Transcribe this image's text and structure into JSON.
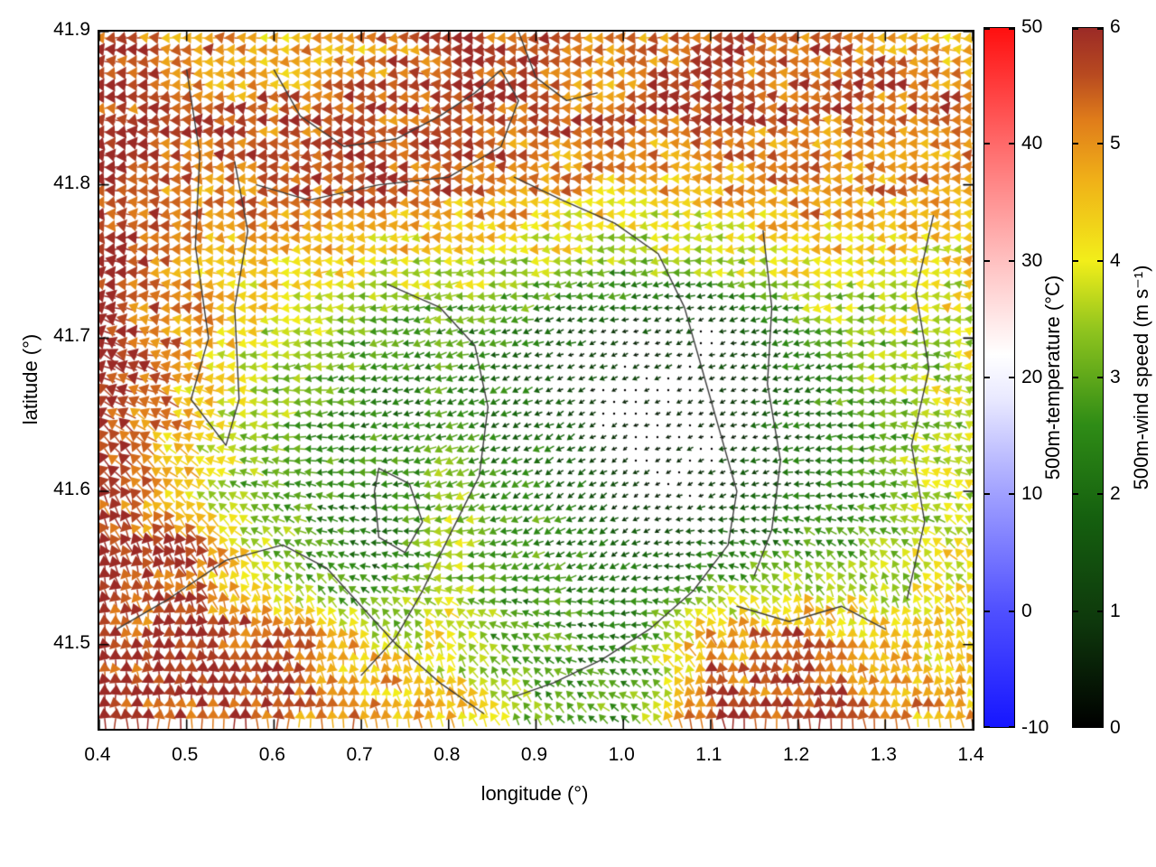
{
  "chart_data": {
    "type": "quiver",
    "title": "",
    "xlabel": "longitude (°)",
    "ylabel": "latitude (°)",
    "xlim": [
      0.4,
      1.4
    ],
    "ylim": [
      41.445,
      41.9
    ],
    "xticks": [
      0.4,
      0.5,
      0.6,
      0.7,
      0.8,
      0.9,
      1.0,
      1.1,
      1.2,
      1.3,
      1.4
    ],
    "xtick_labels": [
      "0.4",
      "0.5",
      "0.6",
      "0.7",
      "0.8",
      "0.9",
      "1.0",
      "1.1",
      "1.2",
      "1.3",
      "1.4"
    ],
    "yticks": [
      41.5,
      41.6,
      41.7,
      41.8,
      41.9
    ],
    "ytick_labels": [
      "41.5",
      "41.6",
      "41.7",
      "41.8",
      "41.9"
    ],
    "grid": false,
    "legend": "none",
    "lon_grid": [
      0.4,
      0.5,
      0.6,
      0.7,
      0.8,
      0.9,
      1.0,
      1.1,
      1.2,
      1.3,
      1.4
    ],
    "lat_grid": [
      41.9,
      41.85,
      41.8,
      41.75,
      41.7,
      41.65,
      41.6,
      41.55,
      41.5,
      41.45
    ],
    "speed_ms": [
      [
        5.8,
        5.2,
        4.2,
        4.8,
        5.6,
        5.6,
        5.2,
        5.6,
        5.4,
        5.2,
        4.6
      ],
      [
        6.0,
        5.6,
        5.4,
        5.6,
        5.8,
        5.6,
        5.4,
        5.6,
        5.6,
        5.4,
        5.2
      ],
      [
        6.0,
        5.2,
        5.6,
        5.8,
        5.4,
        5.0,
        4.6,
        4.8,
        5.2,
        5.0,
        4.8
      ],
      [
        6.0,
        5.0,
        4.4,
        4.2,
        4.0,
        3.8,
        3.4,
        3.6,
        4.2,
        4.0,
        4.2
      ],
      [
        6.0,
        4.8,
        3.8,
        3.0,
        2.6,
        1.8,
        0.8,
        0.4,
        2.4,
        3.4,
        3.8
      ],
      [
        6.0,
        4.6,
        3.2,
        2.6,
        2.2,
        1.6,
        0.4,
        0.3,
        2.0,
        3.2,
        3.8
      ],
      [
        6.0,
        4.4,
        2.6,
        2.0,
        3.2,
        2.2,
        1.0,
        0.8,
        1.8,
        3.0,
        3.8
      ],
      [
        6.0,
        5.4,
        3.6,
        2.0,
        3.4,
        2.6,
        1.6,
        2.4,
        3.2,
        3.6,
        4.2
      ],
      [
        6.0,
        5.8,
        5.6,
        4.2,
        3.8,
        2.6,
        2.2,
        5.0,
        5.6,
        4.4,
        4.4
      ],
      [
        6.0,
        5.8,
        5.6,
        5.0,
        4.4,
        3.2,
        2.6,
        5.6,
        6.0,
        5.2,
        4.6
      ]
    ],
    "direction_deg": [
      [
        180,
        180,
        180,
        180,
        180,
        180,
        180,
        180,
        180,
        180,
        180
      ],
      [
        180,
        180,
        180,
        180,
        180,
        180,
        180,
        180,
        180,
        180,
        180
      ],
      [
        180,
        180,
        180,
        180,
        180,
        180,
        180,
        180,
        180,
        180,
        180
      ],
      [
        175,
        180,
        182,
        185,
        185,
        185,
        185,
        185,
        182,
        178,
        175
      ],
      [
        160,
        175,
        185,
        190,
        195,
        200,
        200,
        200,
        195,
        180,
        170
      ],
      [
        140,
        160,
        180,
        195,
        200,
        205,
        210,
        205,
        195,
        175,
        160
      ],
      [
        120,
        140,
        160,
        185,
        200,
        210,
        215,
        200,
        185,
        165,
        150
      ],
      [
        105,
        115,
        130,
        160,
        180,
        200,
        210,
        160,
        130,
        125,
        135
      ],
      [
        100,
        95,
        95,
        105,
        115,
        150,
        170,
        105,
        95,
        100,
        115
      ],
      [
        95,
        90,
        90,
        95,
        105,
        125,
        140,
        95,
        90,
        95,
        105
      ]
    ],
    "speed_colormap": [
      [
        0.0,
        "#000000"
      ],
      [
        0.9,
        "#0e380c"
      ],
      [
        1.8,
        "#15600f"
      ],
      [
        2.6,
        "#2f8c16"
      ],
      [
        3.4,
        "#8fc41e"
      ],
      [
        4.0,
        "#f2ee1a"
      ],
      [
        4.7,
        "#f0b018"
      ],
      [
        5.2,
        "#e07d1a"
      ],
      [
        5.6,
        "#b84a20"
      ],
      [
        6.0,
        "#9b2a26"
      ]
    ],
    "contour_color": "#3c3c3c",
    "contours_lonlat": [
      [
        [
          0.5,
          41.875
        ],
        [
          0.515,
          41.82
        ],
        [
          0.51,
          41.76
        ],
        [
          0.525,
          41.7
        ],
        [
          0.505,
          41.66
        ],
        [
          0.545,
          41.63
        ],
        [
          0.56,
          41.66
        ],
        [
          0.555,
          41.72
        ],
        [
          0.57,
          41.77
        ],
        [
          0.555,
          41.815
        ]
      ],
      [
        [
          0.6,
          41.875
        ],
        [
          0.63,
          41.845
        ],
        [
          0.68,
          41.825
        ],
        [
          0.74,
          41.83
        ],
        [
          0.79,
          41.845
        ],
        [
          0.83,
          41.86
        ],
        [
          0.86,
          41.875
        ],
        [
          0.88,
          41.855
        ],
        [
          0.86,
          41.825
        ],
        [
          0.8,
          41.805
        ],
        [
          0.72,
          41.8
        ],
        [
          0.64,
          41.79
        ],
        [
          0.58,
          41.8
        ]
      ],
      [
        [
          0.875,
          41.805
        ],
        [
          0.93,
          41.79
        ],
        [
          0.99,
          41.775
        ],
        [
          1.04,
          41.755
        ],
        [
          1.07,
          41.72
        ],
        [
          1.09,
          41.68
        ],
        [
          1.11,
          41.64
        ],
        [
          1.13,
          41.6
        ],
        [
          1.12,
          41.565
        ],
        [
          1.08,
          41.535
        ],
        [
          1.03,
          41.51
        ],
        [
          0.975,
          41.49
        ],
        [
          0.92,
          41.475
        ],
        [
          0.87,
          41.465
        ]
      ],
      [
        [
          1.16,
          41.77
        ],
        [
          1.17,
          41.72
        ],
        [
          1.165,
          41.67
        ],
        [
          1.18,
          41.62
        ],
        [
          1.17,
          41.575
        ],
        [
          1.15,
          41.545
        ]
      ],
      [
        [
          0.73,
          41.735
        ],
        [
          0.79,
          41.72
        ],
        [
          0.83,
          41.695
        ],
        [
          0.845,
          41.655
        ],
        [
          0.835,
          41.61
        ],
        [
          0.8,
          41.57
        ],
        [
          0.77,
          41.535
        ],
        [
          0.74,
          41.505
        ],
        [
          0.7,
          41.48
        ]
      ],
      [
        [
          0.72,
          41.615
        ],
        [
          0.755,
          41.605
        ],
        [
          0.77,
          41.58
        ],
        [
          0.75,
          41.56
        ],
        [
          0.72,
          41.57
        ],
        [
          0.715,
          41.6
        ],
        [
          0.72,
          41.615
        ]
      ],
      [
        [
          0.42,
          41.51
        ],
        [
          0.48,
          41.53
        ],
        [
          0.545,
          41.555
        ],
        [
          0.61,
          41.565
        ],
        [
          0.66,
          41.55
        ],
        [
          0.7,
          41.525
        ],
        [
          0.74,
          41.5
        ],
        [
          0.79,
          41.475
        ],
        [
          0.84,
          41.455
        ]
      ],
      [
        [
          1.355,
          41.78
        ],
        [
          1.335,
          41.73
        ],
        [
          1.35,
          41.68
        ],
        [
          1.33,
          41.63
        ],
        [
          1.345,
          41.58
        ],
        [
          1.325,
          41.53
        ]
      ],
      [
        [
          1.13,
          41.525
        ],
        [
          1.19,
          41.515
        ],
        [
          1.25,
          41.525
        ],
        [
          1.3,
          41.51
        ]
      ],
      [
        [
          0.88,
          41.9
        ],
        [
          0.9,
          41.87
        ],
        [
          0.935,
          41.855
        ],
        [
          0.97,
          41.86
        ]
      ]
    ],
    "colorbars": [
      {
        "label": "500m-temperature (°C)",
        "min": -10,
        "max": 50,
        "ticks": [
          -10,
          0,
          10,
          20,
          30,
          40,
          50
        ],
        "tick_labels": [
          "-10",
          "0",
          "10",
          "20",
          "30",
          "40",
          "50"
        ],
        "gradient": [
          [
            -10,
            "#1616ff"
          ],
          [
            0,
            "#5050ff"
          ],
          [
            10,
            "#a0a0ff"
          ],
          [
            18,
            "#e8e8ff"
          ],
          [
            22,
            "#ffffff"
          ],
          [
            30,
            "#ffc0c0"
          ],
          [
            40,
            "#ff6a6a"
          ],
          [
            50,
            "#ff0f0f"
          ]
        ]
      },
      {
        "label": "500m-wind speed (m s⁻¹)",
        "min": 0,
        "max": 6,
        "ticks": [
          0,
          1,
          2,
          3,
          4,
          5,
          6
        ],
        "tick_labels": [
          "0",
          "1",
          "2",
          "3",
          "4",
          "5",
          "6"
        ],
        "gradient": [
          [
            0.0,
            "#000000"
          ],
          [
            0.9,
            "#0e380c"
          ],
          [
            1.8,
            "#15600f"
          ],
          [
            2.6,
            "#2f8c16"
          ],
          [
            3.4,
            "#8fc41e"
          ],
          [
            4.0,
            "#f2ee1a"
          ],
          [
            4.7,
            "#f0b018"
          ],
          [
            5.2,
            "#e07d1a"
          ],
          [
            5.6,
            "#b84a20"
          ],
          [
            6.0,
            "#9b2a26"
          ]
        ]
      }
    ]
  }
}
